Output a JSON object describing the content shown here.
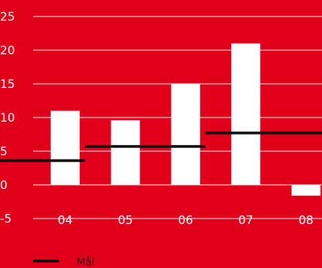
{
  "chart_data": {
    "type": "bar",
    "categories": [
      "04",
      "05",
      "06",
      "07",
      "08"
    ],
    "values": [
      11,
      9.6,
      15,
      21,
      -1.6
    ],
    "ylim": [
      -5,
      25
    ],
    "yticks": [
      "-5",
      "0",
      "5",
      "10",
      "15",
      "20",
      "25"
    ],
    "grid": true,
    "target_line": {
      "name": "Mål",
      "segments": [
        {
          "from": "04",
          "to": "04",
          "value": 3.6
        },
        {
          "from": "05",
          "to": "06",
          "value": 5.7
        },
        {
          "from": "07",
          "to": "08",
          "value": 7.7
        }
      ]
    },
    "legend": {
      "placement": "bottom-left",
      "entries": [
        "Mål"
      ]
    },
    "colors": {
      "background": "#e2001a",
      "bar": "#ffffff",
      "target": "#111111",
      "grid": "#ffffff"
    }
  }
}
